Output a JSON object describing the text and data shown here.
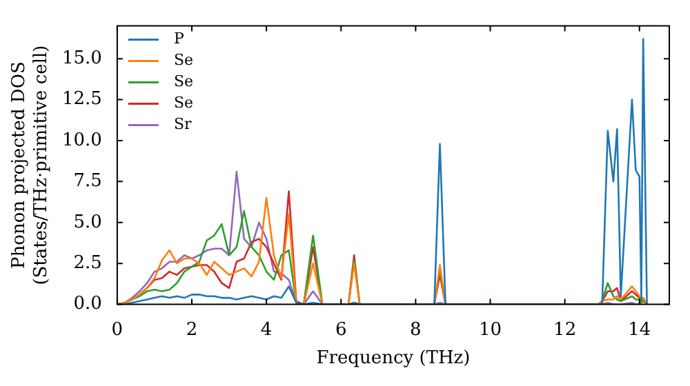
{
  "chart_data": {
    "type": "line",
    "xlabel": "Frequency (THz)",
    "ylabel": "Phonon projected DOS\n(States/THz·primitive cell)",
    "x": [
      0,
      0.2,
      0.4,
      0.6,
      0.8,
      1.0,
      1.2,
      1.4,
      1.6,
      1.8,
      2.0,
      2.2,
      2.4,
      2.6,
      2.8,
      3.0,
      3.2,
      3.4,
      3.6,
      3.8,
      4.0,
      4.2,
      4.4,
      4.6,
      4.8,
      5.0,
      5.25,
      5.5,
      6.2,
      6.35,
      6.5,
      8.5,
      8.65,
      8.8,
      12.9,
      13.0,
      13.15,
      13.3,
      13.4,
      13.5,
      13.8,
      13.9,
      14.0,
      14.05,
      14.1,
      14.2
    ],
    "series": [
      {
        "name": "P",
        "color": "#1f77b4",
        "values": [
          null,
          0,
          0.1,
          0.2,
          0.3,
          0.4,
          0.5,
          0.4,
          0.5,
          0.4,
          0.6,
          0.6,
          0.5,
          0.5,
          0.4,
          0.4,
          0.3,
          0.4,
          0.5,
          0.4,
          0.3,
          0.5,
          0.4,
          1.1,
          0.1,
          0,
          0.1,
          0,
          0,
          0.1,
          0,
          0,
          9.8,
          0,
          0,
          0,
          10.6,
          7.5,
          10.7,
          0.5,
          12.5,
          8.2,
          7.8,
          0.3,
          16.2,
          0
        ]
      },
      {
        "name": "Se",
        "color": "#ff7f0e",
        "values": [
          0,
          0.1,
          0.3,
          0.6,
          1.0,
          1.6,
          2.7,
          3.3,
          2.5,
          2.8,
          2.8,
          2.5,
          1.8,
          2.6,
          2.2,
          1.8,
          2.0,
          2.2,
          1.7,
          2.6,
          6.5,
          3.0,
          1.6,
          5.5,
          0.1,
          0,
          2.5,
          0,
          0,
          2.5,
          0,
          0,
          2.4,
          0,
          0,
          0.2,
          0.3,
          0.3,
          0.5,
          0.3,
          1.1,
          0.8,
          0.5,
          0.3,
          0.4,
          0
        ]
      },
      {
        "name": "Se",
        "color": "#2ca02c",
        "values": [
          0,
          0.1,
          0.3,
          0.5,
          0.8,
          0.9,
          0.8,
          0.9,
          1.3,
          2.0,
          2.3,
          2.6,
          3.9,
          4.2,
          4.9,
          3.0,
          3.5,
          5.7,
          3.5,
          3.0,
          2.0,
          1.5,
          3.0,
          3.3,
          0.1,
          0,
          4.2,
          0,
          0,
          2.7,
          0,
          0,
          2.2,
          0,
          0,
          0.2,
          1.3,
          0.5,
          0.3,
          0.2,
          0.5,
          0.3,
          0.3,
          0.1,
          0.2,
          0
        ]
      },
      {
        "name": "Se",
        "color": "#d62728",
        "values": [
          0,
          0.1,
          0.3,
          0.6,
          1.0,
          1.5,
          1.6,
          2.0,
          1.8,
          2.2,
          2.3,
          2.4,
          2.4,
          2.0,
          1.3,
          1.0,
          2.6,
          2.8,
          3.8,
          4.0,
          3.5,
          2.5,
          1.5,
          6.9,
          0.2,
          0,
          3.5,
          0,
          0,
          3.0,
          0,
          0,
          1.8,
          0,
          0,
          0.2,
          0.8,
          0.8,
          1.0,
          0.2,
          0.8,
          0.6,
          0.4,
          0.2,
          0.4,
          0
        ]
      },
      {
        "name": "Sr",
        "color": "#9467bd",
        "values": [
          0,
          0.1,
          0.4,
          0.8,
          1.3,
          2.0,
          2.2,
          2.6,
          2.6,
          3.0,
          2.8,
          3.0,
          3.3,
          3.4,
          3.4,
          3.0,
          8.1,
          4.0,
          3.5,
          5.0,
          4.0,
          2.0,
          1.9,
          1.5,
          0.1,
          0,
          0.8,
          0,
          0,
          0.1,
          0,
          0,
          0.1,
          0,
          0,
          0,
          0.1,
          0,
          0,
          0,
          0.1,
          0,
          0,
          0,
          null,
          null
        ]
      }
    ],
    "xlim": [
      0,
      14.8
    ],
    "xticks": [
      0,
      2,
      4,
      6,
      8,
      10,
      12,
      14
    ],
    "ylim": [
      0,
      17
    ],
    "yticks": [
      {
        "value": 0,
        "label": "0.0"
      },
      {
        "value": 2.5,
        "label": "2.5"
      },
      {
        "value": 5,
        "label": "5.0"
      },
      {
        "value": 7.5,
        "label": "7.5"
      },
      {
        "value": 10,
        "label": "10.0"
      },
      {
        "value": 12.5,
        "label": "12.5"
      },
      {
        "value": 15,
        "label": "15.0"
      }
    ],
    "grid": false,
    "legend": "top left",
    "marker": "none",
    "line_style": "solid"
  }
}
